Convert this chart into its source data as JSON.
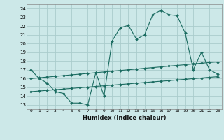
{
  "xlabel": "Humidex (Indice chaleur)",
  "bg_color": "#cce8e8",
  "grid_color": "#aacccc",
  "line_color": "#1a6b60",
  "x_ticks": [
    0,
    1,
    2,
    3,
    4,
    5,
    6,
    7,
    8,
    9,
    10,
    11,
    12,
    13,
    14,
    15,
    16,
    17,
    18,
    19,
    20,
    21,
    22,
    23
  ],
  "y_ticks": [
    13,
    14,
    15,
    16,
    17,
    18,
    19,
    20,
    21,
    22,
    23,
    24
  ],
  "xlim": [
    -0.5,
    23.5
  ],
  "ylim": [
    12.5,
    24.5
  ],
  "line1_x": [
    0,
    1,
    2,
    3,
    4,
    5,
    6,
    7,
    8,
    9,
    10,
    11,
    12,
    13,
    14,
    15,
    16,
    17,
    18,
    19,
    20,
    21,
    22,
    23
  ],
  "line1_y": [
    17.0,
    16.0,
    15.5,
    14.5,
    14.3,
    13.2,
    13.2,
    13.0,
    16.7,
    14.0,
    20.3,
    21.8,
    22.1,
    20.5,
    21.0,
    23.3,
    23.8,
    23.3,
    23.2,
    21.2,
    17.0,
    19.0,
    17.0,
    16.5
  ],
  "line2_x": [
    0,
    1,
    2,
    3,
    4,
    5,
    6,
    7,
    8,
    9,
    10,
    11,
    12,
    13,
    14,
    15,
    16,
    17,
    18,
    19,
    20,
    21,
    22,
    23
  ],
  "line2_y": [
    16.0,
    16.08,
    16.17,
    16.25,
    16.33,
    16.42,
    16.5,
    16.58,
    16.67,
    16.75,
    16.83,
    16.92,
    17.0,
    17.08,
    17.17,
    17.25,
    17.33,
    17.42,
    17.5,
    17.58,
    17.67,
    17.75,
    17.83,
    17.9
  ],
  "line3_x": [
    0,
    1,
    2,
    3,
    4,
    5,
    6,
    7,
    8,
    9,
    10,
    11,
    12,
    13,
    14,
    15,
    16,
    17,
    18,
    19,
    20,
    21,
    22,
    23
  ],
  "line3_y": [
    14.5,
    14.57,
    14.65,
    14.72,
    14.8,
    14.87,
    14.95,
    15.02,
    15.1,
    15.17,
    15.24,
    15.32,
    15.39,
    15.47,
    15.54,
    15.62,
    15.69,
    15.76,
    15.84,
    15.91,
    15.99,
    16.06,
    16.14,
    16.21
  ]
}
